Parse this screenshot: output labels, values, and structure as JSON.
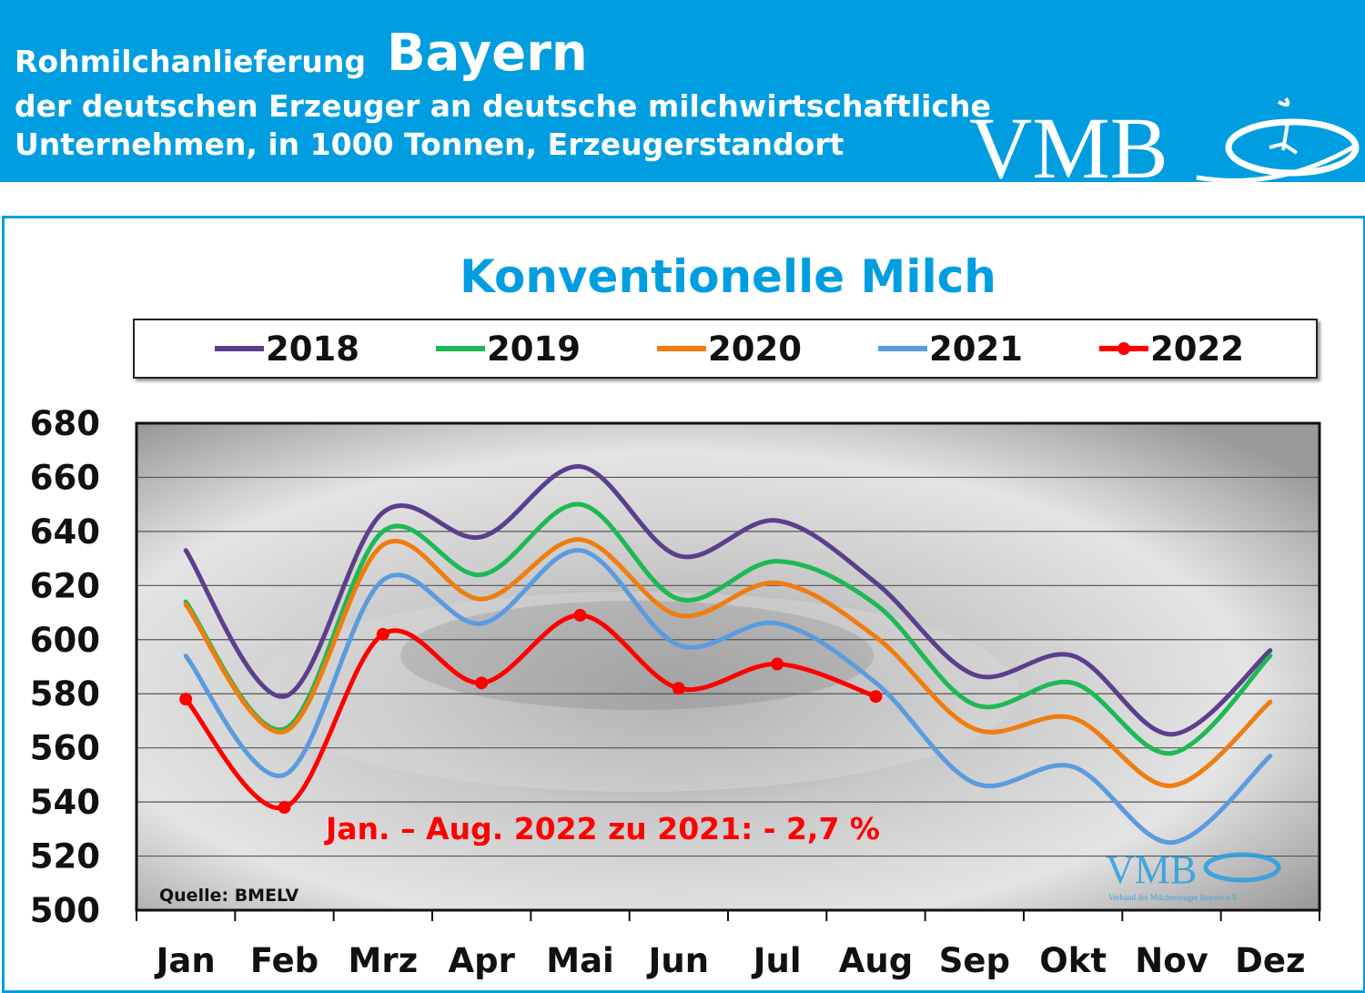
{
  "header": {
    "title_prefix": "Rohmilchanlieferung",
    "title_region": "Bayern",
    "subtitle_line1": "der deutschen Erzeuger an deutsche milchwirtschaftliche",
    "subtitle_line2": "Unternehmen, in 1000 Tonnen, Erzeugerstandort",
    "logo_text": "VMB"
  },
  "watermark": {
    "logo_text": "VMB",
    "tagline": "Verband der Milcherzeuger Bayern e.V."
  },
  "colors": {
    "header_bg": "#009ee0",
    "title": "#009ee0",
    "annotation": "#ff0000"
  },
  "chart_data": {
    "type": "line",
    "title": "Konventionelle Milch",
    "categories": [
      "Jan",
      "Feb",
      "Mrz",
      "Apr",
      "Mai",
      "Jun",
      "Jul",
      "Aug",
      "Sep",
      "Okt",
      "Nov",
      "Dez"
    ],
    "ylim": [
      500,
      680
    ],
    "yticks": [
      500,
      520,
      540,
      560,
      580,
      600,
      620,
      640,
      660,
      680
    ],
    "grid": true,
    "smoothed": true,
    "legend_position": "top",
    "series": [
      {
        "name": "2018",
        "color": "#5b3f8c",
        "markers": false,
        "values": [
          633,
          579,
          647,
          638,
          664,
          631,
          644,
          621,
          587,
          594,
          565,
          596
        ]
      },
      {
        "name": "2019",
        "color": "#1db954",
        "markers": false,
        "values": [
          614,
          567,
          640,
          624,
          650,
          615,
          629,
          613,
          576,
          584,
          558,
          594
        ]
      },
      {
        "name": "2020",
        "color": "#f07d10",
        "markers": false,
        "values": [
          613,
          566,
          635,
          615,
          637,
          609,
          621,
          601,
          567,
          571,
          546,
          577
        ]
      },
      {
        "name": "2021",
        "color": "#5b9bdf",
        "markers": false,
        "values": [
          594,
          550,
          622,
          606,
          633,
          598,
          606,
          584,
          547,
          553,
          525,
          557
        ]
      },
      {
        "name": "2022",
        "color": "#ff0000",
        "markers": true,
        "values": [
          578,
          538,
          602,
          584,
          609,
          582,
          591,
          579,
          null,
          null,
          null,
          null
        ]
      }
    ],
    "annotation": "Jan. – Aug. 2022 zu 2021: - 2,7 %",
    "source": "Quelle: BMELV"
  }
}
